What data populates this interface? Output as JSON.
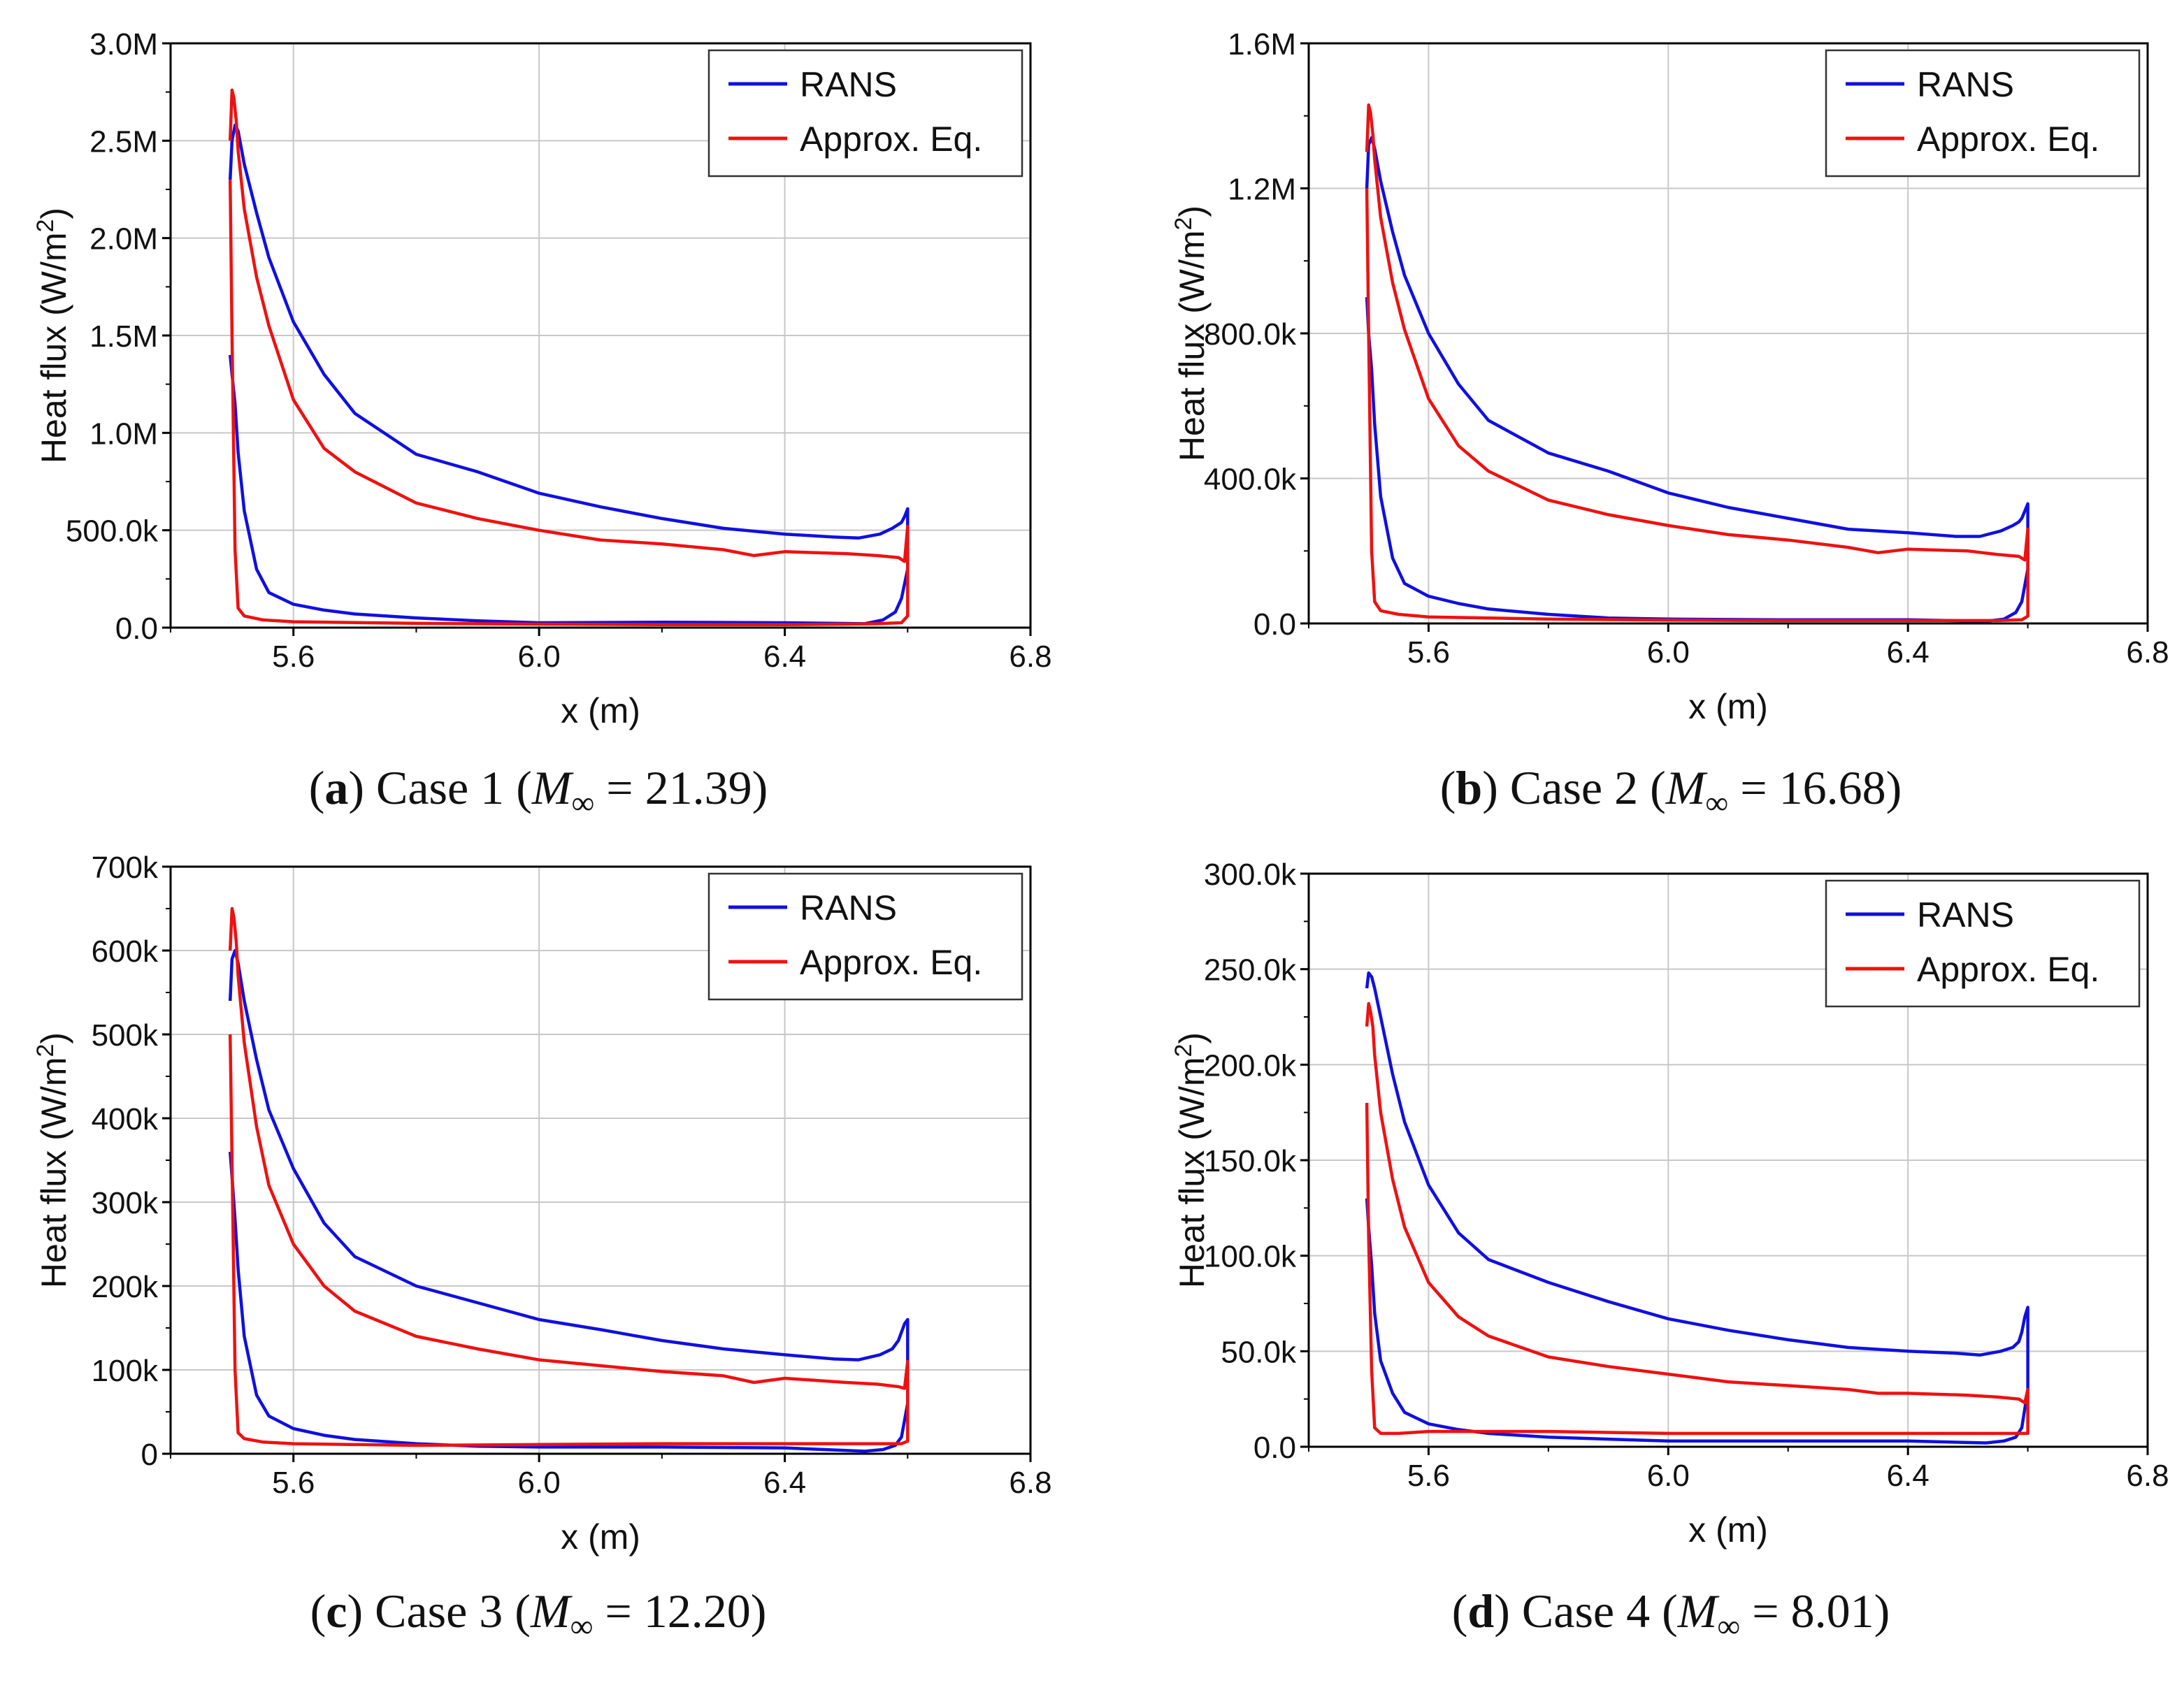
{
  "figure": {
    "type": "multi-panel line chart",
    "panel_count": 4
  },
  "colors": {
    "rans": "#1010e0",
    "approx": "#ee1111",
    "grid": "#c8c8c8",
    "axis": "#000000"
  },
  "chart_data": [
    {
      "type": "line",
      "caption": {
        "letter": "a",
        "case": "Case 1",
        "mach_label": "M",
        "mach_sub": "∞",
        "mach_value": "21.39"
      },
      "xlabel": "x (m)",
      "ylabel": "Heat flux (W/m",
      "ylabel_sup": "2",
      "ylabel_close": ")",
      "xlim": [
        5.4,
        6.8
      ],
      "xticks": [
        5.6,
        6.0,
        6.4,
        6.8
      ],
      "xtick_labels": [
        "5.6",
        "6.0",
        "6.4",
        "6.8"
      ],
      "ylim": [
        0,
        3000000
      ],
      "yticks": [
        0,
        500000,
        1000000,
        1500000,
        2000000,
        2500000,
        3000000
      ],
      "ytick_labels": [
        "0.0",
        "500.0k",
        "1.0M",
        "1.5M",
        "2.0M",
        "2.5M",
        "3.0M"
      ],
      "legend": {
        "position": "top-right",
        "entries": [
          "RANS",
          "Approx. Eq."
        ]
      },
      "series": [
        {
          "name": "RANS",
          "color": "#1010e0",
          "x": [
            5.497,
            5.5,
            5.505,
            5.51,
            5.52,
            5.54,
            5.56,
            5.6,
            5.65,
            5.7,
            5.8,
            5.9,
            6.0,
            6.1,
            6.2,
            6.3,
            6.4,
            6.48,
            6.52,
            6.555,
            6.575,
            6.585,
            6.59,
            6.595,
            6.6,
            6.6,
            6.59,
            6.58,
            6.56,
            6.53,
            6.4,
            6.2,
            6.0,
            5.9,
            5.8,
            5.7,
            5.65,
            5.6,
            5.56,
            5.54,
            5.52,
            5.51,
            5.505,
            5.5,
            5.497
          ],
          "values": [
            2300000,
            2500000,
            2580000,
            2550000,
            2380000,
            2130000,
            1900000,
            1570000,
            1300000,
            1100000,
            890000,
            800000,
            690000,
            620000,
            560000,
            510000,
            480000,
            465000,
            460000,
            480000,
            510000,
            530000,
            540000,
            570000,
            610000,
            300000,
            150000,
            80000,
            40000,
            20000,
            25000,
            28000,
            25000,
            35000,
            50000,
            70000,
            90000,
            120000,
            180000,
            300000,
            600000,
            900000,
            1150000,
            1300000,
            1400000
          ]
        },
        {
          "name": "Approx. Eq.",
          "color": "#ee1111",
          "x": [
            5.497,
            5.5,
            5.503,
            5.507,
            5.51,
            5.52,
            5.54,
            5.56,
            5.6,
            5.65,
            5.7,
            5.8,
            5.9,
            6.0,
            6.1,
            6.2,
            6.3,
            6.35,
            6.4,
            6.5,
            6.55,
            6.585,
            6.595,
            6.6,
            6.6,
            6.59,
            6.55,
            6.5,
            6.4,
            6.2,
            6.0,
            5.8,
            5.6,
            5.55,
            5.52,
            5.51,
            5.505,
            5.5,
            5.497
          ],
          "values": [
            2500000,
            2760000,
            2720000,
            2600000,
            2450000,
            2150000,
            1800000,
            1550000,
            1170000,
            920000,
            800000,
            640000,
            560000,
            500000,
            450000,
            430000,
            400000,
            370000,
            390000,
            380000,
            370000,
            360000,
            340000,
            520000,
            60000,
            25000,
            20000,
            18000,
            15000,
            15000,
            18000,
            22000,
            30000,
            40000,
            60000,
            100000,
            400000,
            1500000,
            2300000
          ]
        }
      ]
    },
    {
      "type": "line",
      "caption": {
        "letter": "b",
        "case": "Case 2",
        "mach_label": "M",
        "mach_sub": "∞",
        "mach_value": "16.68"
      },
      "xlabel": "x (m)",
      "ylabel": "Heat flux (W/m",
      "ylabel_sup": "2",
      "ylabel_close": ")",
      "xlim": [
        5.4,
        6.8
      ],
      "xticks": [
        5.6,
        6.0,
        6.4,
        6.8
      ],
      "xtick_labels": [
        "5.6",
        "6.0",
        "6.4",
        "6.8"
      ],
      "ylim": [
        0,
        1600000
      ],
      "yticks": [
        0,
        400000,
        800000,
        1200000,
        1600000
      ],
      "ytick_labels": [
        "0.0",
        "400.0k",
        "800.0k",
        "1.2M",
        "1.6M"
      ],
      "legend": {
        "position": "top-right",
        "entries": [
          "RANS",
          "Approx. Eq."
        ]
      },
      "series": [
        {
          "name": "RANS",
          "color": "#1010e0",
          "x": [
            5.497,
            5.5,
            5.505,
            5.51,
            5.52,
            5.54,
            5.56,
            5.6,
            5.65,
            5.7,
            5.8,
            5.9,
            6.0,
            6.1,
            6.2,
            6.3,
            6.4,
            6.48,
            6.52,
            6.555,
            6.575,
            6.585,
            6.59,
            6.595,
            6.6,
            6.6,
            6.59,
            6.58,
            6.56,
            6.53,
            6.4,
            6.2,
            6.0,
            5.9,
            5.8,
            5.7,
            5.65,
            5.6,
            5.56,
            5.54,
            5.52,
            5.51,
            5.505,
            5.5,
            5.497
          ],
          "values": [
            1200000,
            1320000,
            1340000,
            1310000,
            1220000,
            1080000,
            960000,
            800000,
            660000,
            560000,
            470000,
            420000,
            360000,
            320000,
            290000,
            260000,
            250000,
            240000,
            240000,
            255000,
            270000,
            280000,
            290000,
            310000,
            330000,
            150000,
            60000,
            30000,
            12000,
            6000,
            10000,
            10000,
            12000,
            15000,
            25000,
            40000,
            55000,
            75000,
            110000,
            180000,
            350000,
            550000,
            700000,
            800000,
            900000
          ]
        },
        {
          "name": "Approx. Eq.",
          "color": "#ee1111",
          "x": [
            5.497,
            5.5,
            5.503,
            5.507,
            5.51,
            5.52,
            5.54,
            5.56,
            5.6,
            5.65,
            5.7,
            5.8,
            5.9,
            6.0,
            6.1,
            6.2,
            6.3,
            6.35,
            6.4,
            6.5,
            6.55,
            6.585,
            6.595,
            6.6,
            6.6,
            6.59,
            6.55,
            6.5,
            6.4,
            6.2,
            6.0,
            5.8,
            5.6,
            5.55,
            5.52,
            5.51,
            5.505,
            5.5,
            5.497
          ],
          "values": [
            1300000,
            1430000,
            1410000,
            1350000,
            1280000,
            1120000,
            940000,
            810000,
            620000,
            490000,
            420000,
            340000,
            300000,
            270000,
            245000,
            230000,
            210000,
            195000,
            205000,
            200000,
            190000,
            185000,
            175000,
            260000,
            20000,
            10000,
            8000,
            8000,
            8000,
            8000,
            9000,
            12000,
            18000,
            25000,
            35000,
            60000,
            200000,
            800000,
            1200000
          ]
        }
      ]
    },
    {
      "type": "line",
      "caption": {
        "letter": "c",
        "case": "Case 3",
        "mach_label": "M",
        "mach_sub": "∞",
        "mach_value": "12.20"
      },
      "xlabel": "x (m)",
      "ylabel": "Heat flux (W/m",
      "ylabel_sup": "2",
      "ylabel_close": ")",
      "xlim": [
        5.4,
        6.8
      ],
      "xticks": [
        5.6,
        6.0,
        6.4,
        6.8
      ],
      "xtick_labels": [
        "5.6",
        "6.0",
        "6.4",
        "6.8"
      ],
      "ylim": [
        0,
        700000
      ],
      "yticks": [
        0,
        100000,
        200000,
        300000,
        400000,
        500000,
        600000,
        700000
      ],
      "ytick_labels": [
        "0",
        "100k",
        "200k",
        "300k",
        "400k",
        "500k",
        "600k",
        "700k"
      ],
      "legend": {
        "position": "top-right",
        "entries": [
          "RANS",
          "Approx. Eq."
        ]
      },
      "series": [
        {
          "name": "RANS",
          "color": "#1010e0",
          "x": [
            5.497,
            5.5,
            5.505,
            5.51,
            5.52,
            5.54,
            5.56,
            5.6,
            5.65,
            5.7,
            5.8,
            5.9,
            6.0,
            6.1,
            6.2,
            6.3,
            6.4,
            6.48,
            6.52,
            6.555,
            6.575,
            6.585,
            6.59,
            6.595,
            6.6,
            6.6,
            6.59,
            6.58,
            6.56,
            6.53,
            6.4,
            6.2,
            6.0,
            5.9,
            5.8,
            5.7,
            5.65,
            5.6,
            5.56,
            5.54,
            5.52,
            5.51,
            5.505,
            5.5,
            5.497
          ],
          "values": [
            540000,
            590000,
            600000,
            585000,
            540000,
            470000,
            410000,
            340000,
            275000,
            235000,
            200000,
            180000,
            160000,
            148000,
            135000,
            125000,
            118000,
            113000,
            112000,
            118000,
            125000,
            135000,
            145000,
            155000,
            160000,
            60000,
            20000,
            10000,
            5000,
            3000,
            7000,
            8000,
            8000,
            9000,
            12000,
            17000,
            22000,
            30000,
            45000,
            70000,
            140000,
            220000,
            280000,
            330000,
            360000
          ]
        },
        {
          "name": "Approx. Eq.",
          "color": "#ee1111",
          "x": [
            5.497,
            5.5,
            5.503,
            5.507,
            5.51,
            5.52,
            5.54,
            5.56,
            5.6,
            5.65,
            5.7,
            5.8,
            5.9,
            6.0,
            6.1,
            6.2,
            6.3,
            6.35,
            6.4,
            6.5,
            6.55,
            6.585,
            6.595,
            6.6,
            6.6,
            6.59,
            6.55,
            6.5,
            6.4,
            6.2,
            6.0,
            5.8,
            5.6,
            5.55,
            5.52,
            5.51,
            5.505,
            5.5,
            5.497
          ],
          "values": [
            600000,
            650000,
            640000,
            610000,
            570000,
            490000,
            390000,
            320000,
            250000,
            200000,
            170000,
            140000,
            125000,
            112000,
            105000,
            98000,
            93000,
            85000,
            90000,
            85000,
            83000,
            80000,
            78000,
            110000,
            15000,
            12000,
            12000,
            12000,
            12000,
            12000,
            11000,
            10000,
            12000,
            14000,
            18000,
            25000,
            100000,
            350000,
            500000
          ]
        }
      ]
    },
    {
      "type": "line",
      "caption": {
        "letter": "d",
        "case": "Case 4",
        "mach_label": "M",
        "mach_sub": "∞",
        "mach_value": "8.01"
      },
      "xlabel": "x (m)",
      "ylabel": "Heat flux (W/m",
      "ylabel_sup": "2",
      "ylabel_close": ")",
      "xlim": [
        5.4,
        6.8
      ],
      "xticks": [
        5.6,
        6.0,
        6.4,
        6.8
      ],
      "xtick_labels": [
        "5.6",
        "6.0",
        "6.4",
        "6.8"
      ],
      "ylim": [
        0,
        300000
      ],
      "yticks": [
        0,
        50000,
        100000,
        150000,
        200000,
        250000,
        300000
      ],
      "ytick_labels": [
        "0.0",
        "50.0k",
        "100.0k",
        "150.0k",
        "200.0k",
        "250.0k",
        "300.0k"
      ],
      "legend": {
        "position": "top-right",
        "entries": [
          "RANS",
          "Approx. Eq."
        ]
      },
      "series": [
        {
          "name": "RANS",
          "color": "#1010e0",
          "x": [
            5.497,
            5.5,
            5.505,
            5.51,
            5.52,
            5.54,
            5.56,
            5.6,
            5.65,
            5.7,
            5.8,
            5.9,
            6.0,
            6.1,
            6.2,
            6.3,
            6.4,
            6.48,
            6.52,
            6.555,
            6.575,
            6.585,
            6.59,
            6.595,
            6.6,
            6.6,
            6.59,
            6.58,
            6.56,
            6.53,
            6.4,
            6.2,
            6.0,
            5.9,
            5.8,
            5.7,
            5.65,
            5.6,
            5.56,
            5.54,
            5.52,
            5.51,
            5.505,
            5.5,
            5.497
          ],
          "values": [
            240000,
            248000,
            246000,
            240000,
            225000,
            195000,
            170000,
            137000,
            112000,
            98000,
            86000,
            76000,
            67000,
            61000,
            56000,
            52000,
            50000,
            49000,
            48000,
            50000,
            52000,
            55000,
            60000,
            68000,
            73000,
            30000,
            10000,
            5000,
            3000,
            2000,
            3000,
            3000,
            3000,
            4000,
            5000,
            7000,
            9000,
            12000,
            18000,
            28000,
            45000,
            70000,
            95000,
            115000,
            130000
          ]
        },
        {
          "name": "Approx. Eq.",
          "color": "#ee1111",
          "x": [
            5.497,
            5.5,
            5.503,
            5.507,
            5.51,
            5.52,
            5.54,
            5.56,
            5.6,
            5.65,
            5.7,
            5.8,
            5.9,
            6.0,
            6.1,
            6.2,
            6.3,
            6.35,
            6.4,
            6.5,
            6.55,
            6.585,
            6.595,
            6.6,
            6.6,
            6.59,
            6.55,
            6.5,
            6.4,
            6.2,
            6.0,
            5.8,
            5.6,
            5.55,
            5.52,
            5.51,
            5.505,
            5.5,
            5.497
          ],
          "values": [
            220000,
            232000,
            228000,
            220000,
            205000,
            175000,
            140000,
            115000,
            86000,
            68000,
            58000,
            47000,
            42000,
            38000,
            34000,
            32000,
            30000,
            28000,
            28000,
            27000,
            26000,
            25000,
            23000,
            30000,
            7000,
            7000,
            7000,
            7000,
            7000,
            7000,
            7000,
            8000,
            8000,
            7000,
            7000,
            10000,
            40000,
            110000,
            180000
          ]
        }
      ]
    }
  ]
}
